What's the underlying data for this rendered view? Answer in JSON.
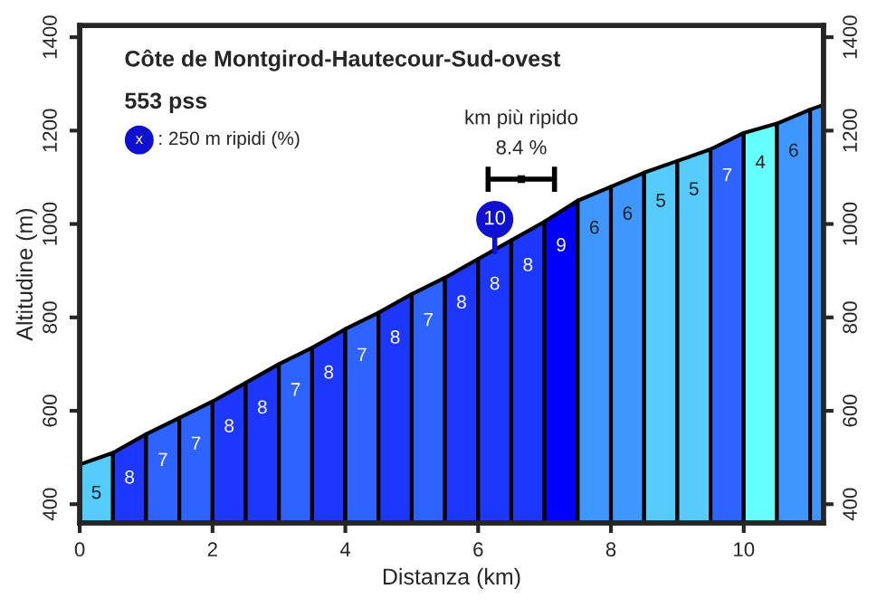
{
  "chart_data": {
    "type": "area",
    "title": "Côte de Montgirod-Hautecour-Sud-ovest",
    "subtitle": "553 pss",
    "xlabel": "Distanza (km)",
    "ylabel": "Altitudine (m)",
    "series": [
      {
        "x": [
          0,
          0.5
        ],
        "values": [
          485,
          510
        ],
        "color": "#55ccfc"
      },
      {
        "x": [
          0.5,
          1
        ],
        "values": [
          510,
          550
        ],
        "color": "#1e37ff"
      },
      {
        "x": [
          1,
          1.5
        ],
        "values": [
          550,
          585
        ],
        "color": "#2e63ff"
      },
      {
        "x": [
          1.5,
          2
        ],
        "values": [
          585,
          620
        ],
        "color": "#2e63ff"
      },
      {
        "x": [
          2,
          2.5
        ],
        "values": [
          620,
          660
        ],
        "color": "#1e37ff"
      },
      {
        "x": [
          2.5,
          3
        ],
        "values": [
          660,
          700
        ],
        "color": "#1e37ff"
      },
      {
        "x": [
          3,
          3.5
        ],
        "values": [
          700,
          735
        ],
        "color": "#2e63ff"
      },
      {
        "x": [
          3.5,
          4
        ],
        "values": [
          735,
          775
        ],
        "color": "#1e37ff"
      },
      {
        "x": [
          4,
          4.5
        ],
        "values": [
          775,
          810
        ],
        "color": "#2e63ff"
      },
      {
        "x": [
          4.5,
          5
        ],
        "values": [
          810,
          850
        ],
        "color": "#1e37ff"
      },
      {
        "x": [
          5,
          5.5
        ],
        "values": [
          850,
          885
        ],
        "color": "#2e63ff"
      },
      {
        "x": [
          5.5,
          6
        ],
        "values": [
          885,
          925
        ],
        "color": "#1e37ff"
      },
      {
        "x": [
          6,
          6.5
        ],
        "values": [
          925,
          965
        ],
        "color": "#1e37ff"
      },
      {
        "x": [
          6.5,
          7
        ],
        "values": [
          965,
          1005
        ],
        "color": "#1e37ff"
      },
      {
        "x": [
          7,
          7.5
        ],
        "values": [
          1005,
          1050
        ],
        "color": "#0000ff"
      },
      {
        "x": [
          7.5,
          8
        ],
        "values": [
          1050,
          1080
        ],
        "color": "#3f96ff"
      },
      {
        "x": [
          8,
          8.5
        ],
        "values": [
          1080,
          1110
        ],
        "color": "#3f96ff"
      },
      {
        "x": [
          8.5,
          9
        ],
        "values": [
          1110,
          1135
        ],
        "color": "#55ccfc"
      },
      {
        "x": [
          9,
          9.5
        ],
        "values": [
          1135,
          1160
        ],
        "color": "#55ccfc"
      },
      {
        "x": [
          9.5,
          10
        ],
        "values": [
          1160,
          1195
        ],
        "color": "#2e63ff"
      },
      {
        "x": [
          10,
          10.5
        ],
        "values": [
          1195,
          1215
        ],
        "color": "#66ffff"
      },
      {
        "x": [
          10.5,
          11
        ],
        "values": [
          1215,
          1245
        ],
        "color": "#3f96ff"
      },
      {
        "x": [
          11,
          11.2
        ],
        "values": [
          1245,
          1255
        ],
        "color": "#3f96ff"
      },
      {
        "type": "scatter",
        "x": [
          6.25
        ],
        "values": [
          1010
        ],
        "color": "#1010d0",
        "marker": "circle"
      },
      {
        "type": "scatter",
        "x": [
          6.65
        ],
        "values": [
          1096
        ],
        "xerrors": [
          0.5
        ],
        "color": "#000000",
        "marker": "square"
      }
    ],
    "annotations": [
      "x",
      ": 250 m ripidi (%)",
      "10",
      "km più ripido",
      "8.4 %",
      "5",
      "8",
      "7",
      "7",
      "8",
      "8",
      "7",
      "8",
      "7",
      "8",
      "7",
      "8",
      "8",
      "8",
      "9",
      "6",
      "6",
      "5",
      "5",
      "7",
      "4",
      "6"
    ],
    "xlim": [
      0,
      11.2
    ],
    "xticks": [
      0,
      2,
      4,
      6,
      8,
      10
    ],
    "ylim": [
      360,
      1425
    ],
    "yticks": [
      400,
      600,
      800,
      1000,
      1200,
      1400
    ],
    "y2lim": [
      360,
      1425
    ],
    "y2ticks": [
      400,
      600,
      800,
      1000,
      1200,
      1400
    ],
    "grid": false,
    "legend": false
  }
}
